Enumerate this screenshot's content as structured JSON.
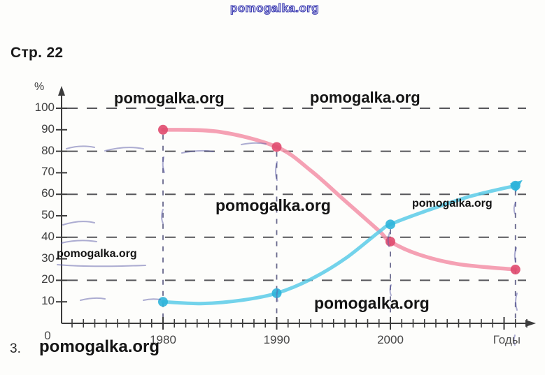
{
  "page": {
    "header": "Стр. 22",
    "item_number": "3.",
    "watermark_text": "pomogalka.org"
  },
  "chart_data": {
    "type": "line",
    "title": "",
    "xlabel": "Годы",
    "ylabel": "%",
    "ylim": [
      0,
      100
    ],
    "xlim_years": [
      1971,
      2012
    ],
    "y_ticks": [
      10,
      20,
      30,
      40,
      50,
      60,
      70,
      80,
      90,
      100
    ],
    "origin_label": "0",
    "grid_y_dashed": [
      20,
      40,
      60,
      80,
      100
    ],
    "x_labeled_ticks": [
      {
        "year": 1980,
        "label": "1980"
      },
      {
        "year": 1990,
        "label": "1990"
      },
      {
        "year": 2000,
        "label": "2000"
      }
    ],
    "series": [
      {
        "name": "declining-share-pink",
        "color": "#f391a7",
        "marker_color": "#e04a6e",
        "line_width": 5.5,
        "end_arrow": false,
        "markers": [
          [
            1980,
            90
          ],
          [
            1990,
            82
          ],
          [
            2000,
            38
          ],
          [
            2011,
            25
          ]
        ],
        "shape": [
          [
            1980,
            90
          ],
          [
            1985,
            89
          ],
          [
            1990,
            82
          ],
          [
            1993,
            71
          ],
          [
            1996,
            57
          ],
          [
            1999,
            43
          ],
          [
            2000,
            38
          ],
          [
            2002.5,
            32
          ],
          [
            2006,
            27.5
          ],
          [
            2011,
            25
          ]
        ]
      },
      {
        "name": "rising-share-cyan",
        "color": "#5bcbe8",
        "marker_color": "#2db4da",
        "line_width": 5,
        "end_arrow": true,
        "markers": [
          [
            1980,
            10
          ],
          [
            1990,
            14
          ],
          [
            2000,
            46
          ],
          [
            2011,
            64
          ]
        ],
        "shape": [
          [
            1980,
            10
          ],
          [
            1983.5,
            9.2
          ],
          [
            1987,
            10.8
          ],
          [
            1990,
            14
          ],
          [
            1993,
            20.5
          ],
          [
            1996,
            30
          ],
          [
            1999,
            42.5
          ],
          [
            2000,
            46
          ],
          [
            2003,
            52
          ],
          [
            2007,
            59
          ],
          [
            2011,
            64
          ]
        ]
      }
    ],
    "guides": [
      [
        1980,
        90
      ],
      [
        1990,
        82
      ],
      [
        2000,
        46
      ],
      [
        2011,
        64
      ]
    ]
  }
}
